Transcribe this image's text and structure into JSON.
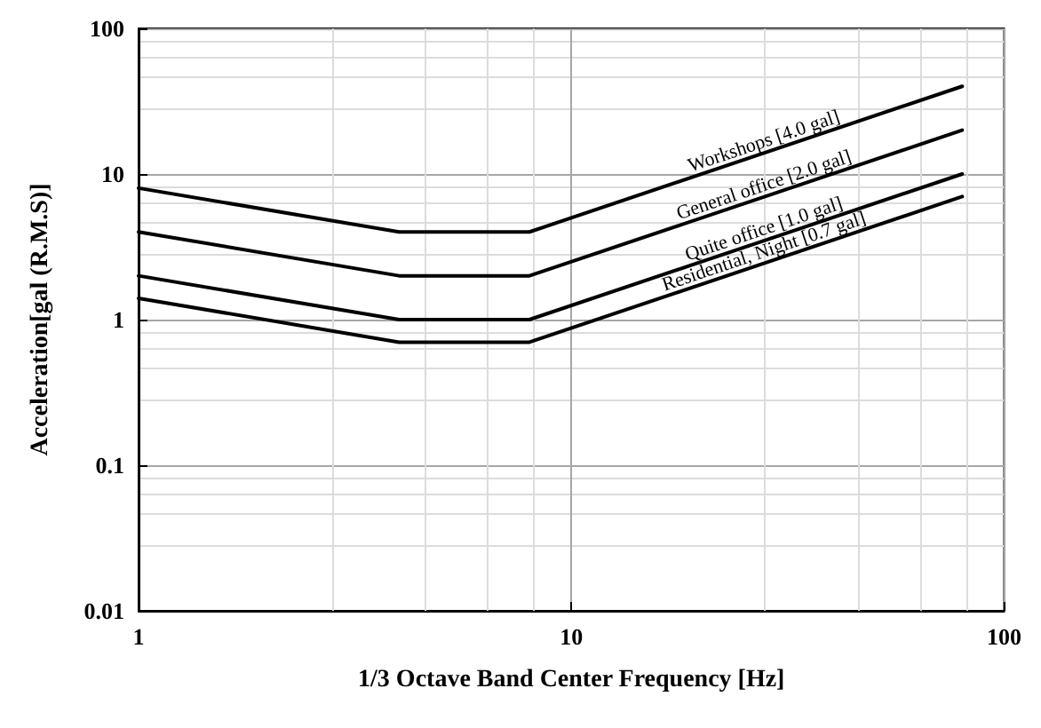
{
  "chart_data": {
    "type": "line",
    "xlabel": "1/3 Octave Band Center Frequency [Hz]",
    "ylabel": "Acceleration[gal (R.M.S)]",
    "log": "xy",
    "grid": true,
    "marker": "none",
    "line_style": "solid",
    "xlim": [
      1,
      100
    ],
    "xticks": [
      1,
      10,
      100
    ],
    "ylim": [
      0.01,
      100
    ],
    "yticks": [
      0.01,
      0.1,
      1,
      10,
      100
    ],
    "series": [
      {
        "name": "Workshops [4.0 gal]",
        "color": "#000000",
        "x": [
          1,
          4,
          8,
          80
        ],
        "values": [
          8,
          4,
          4,
          40
        ]
      },
      {
        "name": "General office [2.0 gal]",
        "color": "#000000",
        "x": [
          1,
          4,
          8,
          80
        ],
        "values": [
          4,
          2,
          2,
          20
        ]
      },
      {
        "name": "Quite office [1.0 gal]",
        "color": "#000000",
        "x": [
          1,
          4,
          8,
          80
        ],
        "values": [
          2,
          1,
          1,
          10
        ]
      },
      {
        "name": "Residential, Night [0.7 gal]",
        "color": "#000000",
        "x": [
          1,
          4,
          8,
          80
        ],
        "values": [
          1.4,
          0.7,
          0.7,
          7
        ]
      }
    ]
  }
}
